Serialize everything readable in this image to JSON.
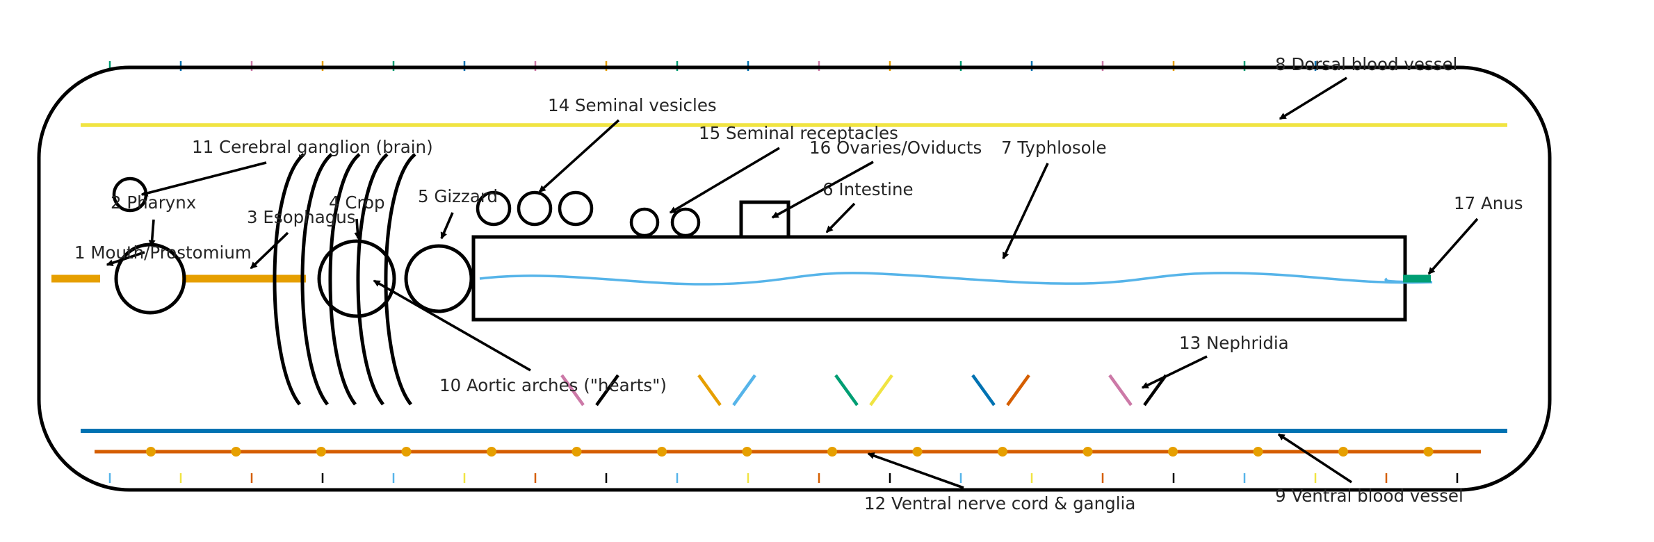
{
  "colors": {
    "outline": "#000000",
    "dorsal_vessel": "#f0e442",
    "ventral_vessel": "#0072b2",
    "nerve_cord": "#d55e00",
    "ganglia": "#e69f00",
    "mouth_esophagus": "#e69f00",
    "typhlosole": "#56b4e9",
    "anus": "#009e73",
    "segment_ticks": [
      "#009e73",
      "#0072b2",
      "#cc79a7",
      "#e69f00",
      "#009e73",
      "#0072b2",
      "#cc79a7",
      "#e69f00",
      "#009e73",
      "#0072b2",
      "#cc79a7",
      "#e69f00",
      "#009e73",
      "#0072b2",
      "#cc79a7",
      "#e69f00",
      "#009e73",
      "#0072b2"
    ],
    "bottom_ticks": [
      "#56b4e9",
      "#f0e442",
      "#d55e00",
      "#000000",
      "#56b4e9",
      "#f0e442",
      "#d55e00",
      "#000000",
      "#56b4e9",
      "#f0e442",
      "#d55e00",
      "#000000",
      "#56b4e9",
      "#f0e442",
      "#d55e00",
      "#000000",
      "#56b4e9",
      "#f0e442",
      "#d55e00",
      "#000000"
    ],
    "nephridia_pairs": [
      [
        "#cc79a7",
        "#000000"
      ],
      [
        "#e69f00",
        "#56b4e9"
      ],
      [
        "#009e73",
        "#f0e442"
      ],
      [
        "#0072b2",
        "#d55e00"
      ],
      [
        "#cc79a7",
        "#000000"
      ]
    ]
  },
  "labels": {
    "mouth": "1 Mouth/Prostomium",
    "pharynx": "2 Pharynx",
    "esophagus": "3 Esophagus",
    "crop": "4 Crop",
    "gizzard": "5 Gizzard",
    "intestine": "6 Intestine",
    "typhlosole": "7 Typhlosole",
    "dorsal_vessel": "8 Dorsal blood vessel",
    "ventral_vessel": "9 Ventral blood vessel",
    "aortic_arches": "10 Aortic arches (\"hearts\")",
    "cerebral_ganglion": "11 Cerebral ganglion (brain)",
    "nerve_cord": "12 Ventral nerve cord & ganglia",
    "nephridia": "13 Nephridia",
    "seminal_vesicles": "14 Seminal vesicles",
    "seminal_receptacles": "15 Seminal receptacles",
    "ovaries": "16 Ovaries/Oviducts",
    "anus": "17 Anus"
  }
}
